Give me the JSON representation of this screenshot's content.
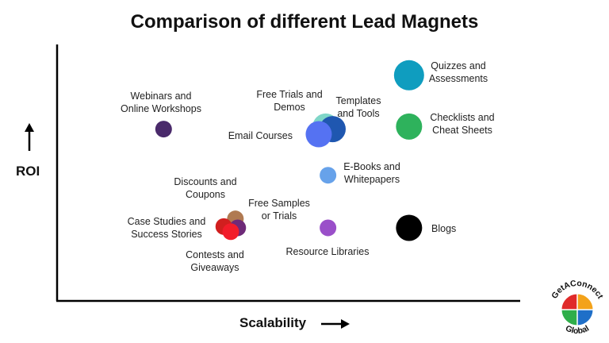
{
  "chart_data": {
    "type": "scatter",
    "title": "Comparison of different Lead Magnets",
    "xlabel": "Scalability",
    "ylabel": "ROI",
    "xlim": [
      0,
      100
    ],
    "ylim": [
      0,
      100
    ],
    "grid": false,
    "points": [
      {
        "label": "Quizzes and Assessments",
        "x": 76,
        "y": 88,
        "color": "#0f9dbf",
        "size": "large"
      },
      {
        "label": "Checklists and Cheat Sheets",
        "x": 76,
        "y": 68,
        "color": "#2eb25c",
        "size": "medium"
      },
      {
        "label": "Webinars and Online Workshops",
        "x": 23,
        "y": 67,
        "color": "#4a2a6b",
        "size": "small"
      },
      {
        "label": "Free Trials and Demos",
        "x": 58,
        "y": 68,
        "color": "#7fd6c8",
        "size": "medium"
      },
      {
        "label": "Templates and Tools",
        "x": 59.5,
        "y": 67,
        "color": "#1f57b0",
        "size": "medium"
      },
      {
        "label": "Email Courses",
        "x": 56.5,
        "y": 65,
        "color": "#5572f2",
        "size": "medium"
      },
      {
        "label": "E-Books and Whitepapers",
        "x": 58.5,
        "y": 49,
        "color": "#67a2ea",
        "size": "small"
      },
      {
        "label": "Discounts and Coupons",
        "x": 38.5,
        "y": 32,
        "color": "#b07a52",
        "size": "small"
      },
      {
        "label": "Case Studies and Success Stories",
        "x": 36,
        "y": 29,
        "color": "#d11f1f",
        "size": "small"
      },
      {
        "label": "Free Samples or Trials",
        "x": 39,
        "y": 28.5,
        "color": "#6e2a78",
        "size": "small"
      },
      {
        "label": "Contests and Giveaways",
        "x": 37.5,
        "y": 27,
        "color": "#f21c2a",
        "size": "small"
      },
      {
        "label": "Resource Libraries",
        "x": 58.5,
        "y": 28.5,
        "color": "#9a4fc9",
        "size": "small"
      },
      {
        "label": "Blogs",
        "x": 76,
        "y": 28.5,
        "color": "#000000",
        "size": "medium"
      }
    ]
  },
  "logo": {
    "top_text": "GetAConnect",
    "bottom_text": "Global"
  }
}
